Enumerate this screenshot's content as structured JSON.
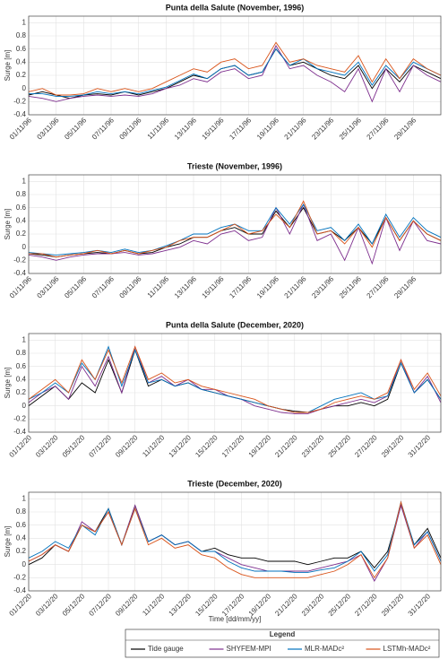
{
  "chart_data": [
    {
      "type": "line",
      "title": "Punta della Salute (November, 1996)",
      "ylabel": "Surge [m]",
      "grid": true,
      "x": [
        0,
        1,
        2,
        3,
        4,
        5,
        6,
        7,
        8,
        9,
        10,
        11,
        12,
        13,
        14,
        15,
        16,
        17,
        18,
        19,
        20,
        21,
        22,
        23,
        24,
        25,
        26,
        27,
        28,
        29,
        30
      ],
      "xlim": [
        0,
        30
      ],
      "ylim": [
        -0.4,
        1.1
      ],
      "yticks": [
        -0.4,
        -0.2,
        0,
        0.2,
        0.4,
        0.6,
        0.8,
        1
      ],
      "xticks": [
        {
          "value": 0,
          "label": "01/11/96"
        },
        {
          "value": 2,
          "label": "03/11/96"
        },
        {
          "value": 4,
          "label": "05/11/96"
        },
        {
          "value": 6,
          "label": "07/11/96"
        },
        {
          "value": 8,
          "label": "09/11/96"
        },
        {
          "value": 10,
          "label": "11/11/96"
        },
        {
          "value": 12,
          "label": "13/11/96"
        },
        {
          "value": 14,
          "label": "15/11/96"
        },
        {
          "value": 16,
          "label": "17/11/96"
        },
        {
          "value": 18,
          "label": "19/11/96"
        },
        {
          "value": 20,
          "label": "21/11/96"
        },
        {
          "value": 22,
          "label": "23/11/96"
        },
        {
          "value": 24,
          "label": "25/11/96"
        },
        {
          "value": 26,
          "label": "27/11/96"
        },
        {
          "value": 28,
          "label": "29/11/96"
        }
      ],
      "series": [
        {
          "name": "Tide gauge",
          "color": "#000000",
          "values": [
            -0.1,
            -0.05,
            -0.1,
            -0.15,
            -0.1,
            -0.08,
            -0.1,
            -0.05,
            -0.1,
            -0.05,
            0.0,
            0.1,
            0.2,
            0.15,
            0.3,
            0.35,
            0.2,
            0.25,
            0.6,
            0.35,
            0.4,
            0.3,
            0.2,
            0.15,
            0.35,
            0.0,
            0.3,
            0.1,
            0.35,
            0.25,
            0.15
          ]
        },
        {
          "name": "SHYFEM-MPI",
          "color": "#7e2f8e",
          "values": [
            -0.12,
            -0.15,
            -0.2,
            -0.15,
            -0.12,
            -0.1,
            -0.12,
            -0.1,
            -0.12,
            -0.08,
            0.0,
            0.05,
            0.15,
            0.1,
            0.25,
            0.3,
            0.15,
            0.2,
            0.65,
            0.3,
            0.35,
            0.2,
            0.1,
            -0.05,
            0.3,
            -0.2,
            0.3,
            -0.05,
            0.35,
            0.2,
            0.1
          ]
        },
        {
          "name": "MLR-MADc²",
          "color": "#0072bd",
          "values": [
            -0.08,
            -0.08,
            -0.12,
            -0.12,
            -0.1,
            -0.05,
            -0.08,
            -0.05,
            -0.08,
            -0.03,
            0.02,
            0.12,
            0.22,
            0.15,
            0.3,
            0.35,
            0.2,
            0.25,
            0.6,
            0.35,
            0.45,
            0.3,
            0.25,
            0.2,
            0.4,
            0.05,
            0.35,
            0.15,
            0.4,
            0.3,
            0.2
          ]
        },
        {
          "name": "LSTMh-MADc²",
          "color": "#d95319",
          "values": [
            -0.05,
            0.0,
            -0.1,
            -0.1,
            -0.08,
            0.0,
            -0.05,
            0.0,
            -0.05,
            0.0,
            0.1,
            0.2,
            0.3,
            0.25,
            0.4,
            0.45,
            0.3,
            0.35,
            0.7,
            0.4,
            0.45,
            0.35,
            0.3,
            0.25,
            0.5,
            0.1,
            0.45,
            0.15,
            0.45,
            0.3,
            0.2
          ]
        }
      ]
    },
    {
      "type": "line",
      "title": "Trieste (November, 1996)",
      "ylabel": "Surge [m]",
      "grid": true,
      "x": [
        0,
        1,
        2,
        3,
        4,
        5,
        6,
        7,
        8,
        9,
        10,
        11,
        12,
        13,
        14,
        15,
        16,
        17,
        18,
        19,
        20,
        21,
        22,
        23,
        24,
        25,
        26,
        27,
        28,
        29,
        30
      ],
      "xlim": [
        0,
        30
      ],
      "ylim": [
        -0.4,
        1.1
      ],
      "yticks": [
        -0.4,
        -0.2,
        0,
        0.2,
        0.4,
        0.6,
        0.8,
        1
      ],
      "xticks": [
        {
          "value": 0,
          "label": "01/11/96"
        },
        {
          "value": 2,
          "label": "03/11/96"
        },
        {
          "value": 4,
          "label": "05/11/96"
        },
        {
          "value": 6,
          "label": "07/11/96"
        },
        {
          "value": 8,
          "label": "09/11/96"
        },
        {
          "value": 10,
          "label": "11/11/96"
        },
        {
          "value": 12,
          "label": "13/11/96"
        },
        {
          "value": 14,
          "label": "15/11/96"
        },
        {
          "value": 16,
          "label": "17/11/96"
        },
        {
          "value": 18,
          "label": "19/11/96"
        },
        {
          "value": 20,
          "label": "21/11/96"
        },
        {
          "value": 22,
          "label": "23/11/96"
        },
        {
          "value": 24,
          "label": "25/11/96"
        },
        {
          "value": 26,
          "label": "27/11/96"
        },
        {
          "value": 28,
          "label": "29/11/96"
        }
      ],
      "series": [
        {
          "name": "Tide gauge",
          "color": "#000000",
          "values": [
            -0.1,
            -0.12,
            -0.15,
            -0.12,
            -0.1,
            -0.08,
            -0.1,
            -0.05,
            -0.1,
            -0.08,
            0.0,
            0.05,
            0.15,
            0.15,
            0.25,
            0.3,
            0.2,
            0.2,
            0.55,
            0.3,
            0.6,
            0.2,
            0.25,
            0.1,
            0.3,
            0.05,
            0.45,
            0.1,
            0.4,
            0.2,
            0.1
          ]
        },
        {
          "name": "SHYFEM-MPI",
          "color": "#7e2f8e",
          "values": [
            -0.12,
            -0.15,
            -0.2,
            -0.15,
            -0.12,
            -0.1,
            -0.1,
            -0.08,
            -0.12,
            -0.1,
            -0.05,
            0.0,
            0.1,
            0.05,
            0.2,
            0.25,
            0.1,
            0.15,
            0.6,
            0.2,
            0.65,
            0.1,
            0.2,
            -0.2,
            0.3,
            -0.25,
            0.45,
            -0.05,
            0.4,
            0.1,
            0.05
          ]
        },
        {
          "name": "MLR-MADc²",
          "color": "#0072bd",
          "values": [
            -0.08,
            -0.1,
            -0.12,
            -0.1,
            -0.08,
            -0.05,
            -0.08,
            -0.03,
            -0.08,
            -0.05,
            0.02,
            0.1,
            0.2,
            0.2,
            0.3,
            0.35,
            0.25,
            0.25,
            0.6,
            0.35,
            0.65,
            0.25,
            0.3,
            0.1,
            0.35,
            0.05,
            0.5,
            0.15,
            0.45,
            0.25,
            0.15
          ]
        },
        {
          "name": "LSTMh-MADc²",
          "color": "#d95319",
          "values": [
            -0.1,
            -0.1,
            -0.15,
            -0.12,
            -0.1,
            -0.05,
            -0.1,
            -0.05,
            -0.1,
            -0.05,
            0.0,
            0.1,
            0.15,
            0.15,
            0.25,
            0.35,
            0.2,
            0.25,
            0.5,
            0.3,
            0.7,
            0.2,
            0.25,
            0.05,
            0.3,
            0.0,
            0.45,
            0.1,
            0.4,
            0.2,
            0.1
          ]
        }
      ]
    },
    {
      "type": "line",
      "title": "Punta della Salute (December, 2020)",
      "ylabel": "Surge [m]",
      "grid": true,
      "x": [
        0,
        1,
        2,
        3,
        4,
        5,
        6,
        7,
        8,
        9,
        10,
        11,
        12,
        13,
        14,
        15,
        16,
        17,
        18,
        19,
        20,
        21,
        22,
        23,
        24,
        25,
        26,
        27,
        28,
        29,
        30,
        31
      ],
      "xlim": [
        0,
        31
      ],
      "ylim": [
        -0.4,
        1.1
      ],
      "yticks": [
        -0.4,
        -0.2,
        0,
        0.2,
        0.4,
        0.6,
        0.8,
        1
      ],
      "xticks": [
        {
          "value": 0,
          "label": "01/12/20"
        },
        {
          "value": 2,
          "label": "03/12/20"
        },
        {
          "value": 4,
          "label": "05/12/20"
        },
        {
          "value": 6,
          "label": "07/12/20"
        },
        {
          "value": 8,
          "label": "09/12/20"
        },
        {
          "value": 10,
          "label": "11/12/20"
        },
        {
          "value": 12,
          "label": "13/12/20"
        },
        {
          "value": 14,
          "label": "15/12/20"
        },
        {
          "value": 16,
          "label": "17/12/20"
        },
        {
          "value": 18,
          "label": "19/12/20"
        },
        {
          "value": 20,
          "label": "21/12/20"
        },
        {
          "value": 22,
          "label": "23/12/20"
        },
        {
          "value": 24,
          "label": "25/12/20"
        },
        {
          "value": 26,
          "label": "27/12/20"
        },
        {
          "value": 28,
          "label": "29/12/20"
        },
        {
          "value": 30,
          "label": "31/12/20"
        }
      ],
      "series": [
        {
          "name": "Tide gauge",
          "color": "#000000",
          "values": [
            0.0,
            0.15,
            0.3,
            0.1,
            0.35,
            0.2,
            0.7,
            0.2,
            0.85,
            0.3,
            0.4,
            0.3,
            0.35,
            0.25,
            0.2,
            0.15,
            0.1,
            0.05,
            0.0,
            -0.05,
            -0.08,
            -0.1,
            -0.05,
            0.0,
            0.0,
            0.05,
            0.0,
            0.1,
            0.65,
            0.2,
            0.4,
            0.1
          ]
        },
        {
          "name": "SHYFEM-MPI",
          "color": "#7e2f8e",
          "values": [
            0.05,
            0.2,
            0.3,
            0.1,
            0.6,
            0.3,
            0.75,
            0.2,
            0.9,
            0.35,
            0.45,
            0.3,
            0.4,
            0.25,
            0.25,
            0.15,
            0.1,
            0.0,
            -0.05,
            -0.1,
            -0.12,
            -0.12,
            -0.05,
            0.0,
            0.05,
            0.1,
            0.05,
            0.15,
            0.7,
            0.2,
            0.45,
            0.05
          ]
        },
        {
          "name": "MLR-MADc²",
          "color": "#0072bd",
          "values": [
            0.1,
            0.2,
            0.35,
            0.2,
            0.65,
            0.4,
            0.9,
            0.3,
            0.85,
            0.35,
            0.4,
            0.3,
            0.35,
            0.25,
            0.2,
            0.15,
            0.1,
            0.05,
            0.0,
            -0.05,
            -0.1,
            -0.1,
            0.0,
            0.1,
            0.15,
            0.2,
            0.1,
            0.15,
            0.65,
            0.2,
            0.4,
            0.1
          ]
        },
        {
          "name": "LSTMh-MADc²",
          "color": "#d95319",
          "values": [
            0.1,
            0.25,
            0.4,
            0.2,
            0.7,
            0.4,
            0.85,
            0.35,
            0.9,
            0.4,
            0.5,
            0.35,
            0.4,
            0.3,
            0.25,
            0.2,
            0.15,
            0.1,
            0.0,
            -0.05,
            -0.1,
            -0.1,
            -0.05,
            0.05,
            0.1,
            0.15,
            0.1,
            0.2,
            0.7,
            0.25,
            0.5,
            0.15
          ]
        }
      ]
    },
    {
      "type": "line",
      "title": "Trieste (December, 2020)",
      "ylabel": "Surge [m]",
      "xlabel": "Time [dd/mm/yy]",
      "grid": true,
      "legend": {
        "title": "Legend",
        "position": "bottom"
      },
      "x": [
        0,
        1,
        2,
        3,
        4,
        5,
        6,
        7,
        8,
        9,
        10,
        11,
        12,
        13,
        14,
        15,
        16,
        17,
        18,
        19,
        20,
        21,
        22,
        23,
        24,
        25,
        26,
        27,
        28,
        29,
        30,
        31
      ],
      "xlim": [
        0,
        31
      ],
      "ylim": [
        -0.4,
        1.1
      ],
      "yticks": [
        -0.4,
        -0.2,
        0,
        0.2,
        0.4,
        0.6,
        0.8,
        1
      ],
      "xticks": [
        {
          "value": 0,
          "label": "01/12/20"
        },
        {
          "value": 2,
          "label": "03/12/20"
        },
        {
          "value": 4,
          "label": "05/12/20"
        },
        {
          "value": 6,
          "label": "07/12/20"
        },
        {
          "value": 8,
          "label": "09/12/20"
        },
        {
          "value": 10,
          "label": "11/12/20"
        },
        {
          "value": 12,
          "label": "13/12/20"
        },
        {
          "value": 14,
          "label": "15/12/20"
        },
        {
          "value": 16,
          "label": "17/12/20"
        },
        {
          "value": 18,
          "label": "19/12/20"
        },
        {
          "value": 20,
          "label": "21/12/20"
        },
        {
          "value": 22,
          "label": "23/12/20"
        },
        {
          "value": 24,
          "label": "25/12/20"
        },
        {
          "value": 26,
          "label": "27/12/20"
        },
        {
          "value": 28,
          "label": "29/12/20"
        },
        {
          "value": 30,
          "label": "31/12/20"
        }
      ],
      "series": [
        {
          "name": "Tide gauge",
          "color": "#000000",
          "values": [
            0.0,
            0.1,
            0.3,
            0.2,
            0.6,
            0.5,
            0.85,
            0.3,
            0.9,
            0.35,
            0.45,
            0.3,
            0.35,
            0.2,
            0.25,
            0.15,
            0.1,
            0.1,
            0.05,
            0.05,
            0.05,
            0.0,
            0.05,
            0.1,
            0.1,
            0.2,
            -0.05,
            0.2,
            0.9,
            0.3,
            0.55,
            0.1
          ]
        },
        {
          "name": "SHYFEM-MPI",
          "color": "#7e2f8e",
          "values": [
            0.05,
            0.15,
            0.3,
            0.2,
            0.65,
            0.5,
            0.8,
            0.3,
            0.9,
            0.35,
            0.45,
            0.3,
            0.35,
            0.2,
            0.2,
            0.1,
            0.0,
            -0.05,
            -0.1,
            -0.1,
            -0.1,
            -0.1,
            -0.05,
            0.0,
            0.05,
            0.15,
            -0.25,
            0.1,
            0.9,
            0.25,
            0.5,
            0.05
          ]
        },
        {
          "name": "MLR-MADc²",
          "color": "#0072bd",
          "values": [
            0.1,
            0.2,
            0.35,
            0.25,
            0.6,
            0.45,
            0.85,
            0.3,
            0.85,
            0.35,
            0.45,
            0.3,
            0.35,
            0.2,
            0.2,
            0.05,
            -0.05,
            -0.1,
            -0.1,
            -0.1,
            -0.12,
            -0.12,
            -0.08,
            -0.05,
            0.05,
            0.2,
            -0.1,
            0.15,
            0.95,
            0.3,
            0.5,
            0.05
          ]
        },
        {
          "name": "LSTMh-MADc²",
          "color": "#d95319",
          "values": [
            0.05,
            0.15,
            0.3,
            0.2,
            0.6,
            0.5,
            0.8,
            0.3,
            0.85,
            0.3,
            0.4,
            0.25,
            0.3,
            0.15,
            0.1,
            -0.05,
            -0.15,
            -0.2,
            -0.2,
            -0.2,
            -0.2,
            -0.2,
            -0.15,
            -0.1,
            0.0,
            0.15,
            -0.2,
            0.1,
            0.95,
            0.25,
            0.45,
            0.0
          ]
        }
      ]
    }
  ]
}
